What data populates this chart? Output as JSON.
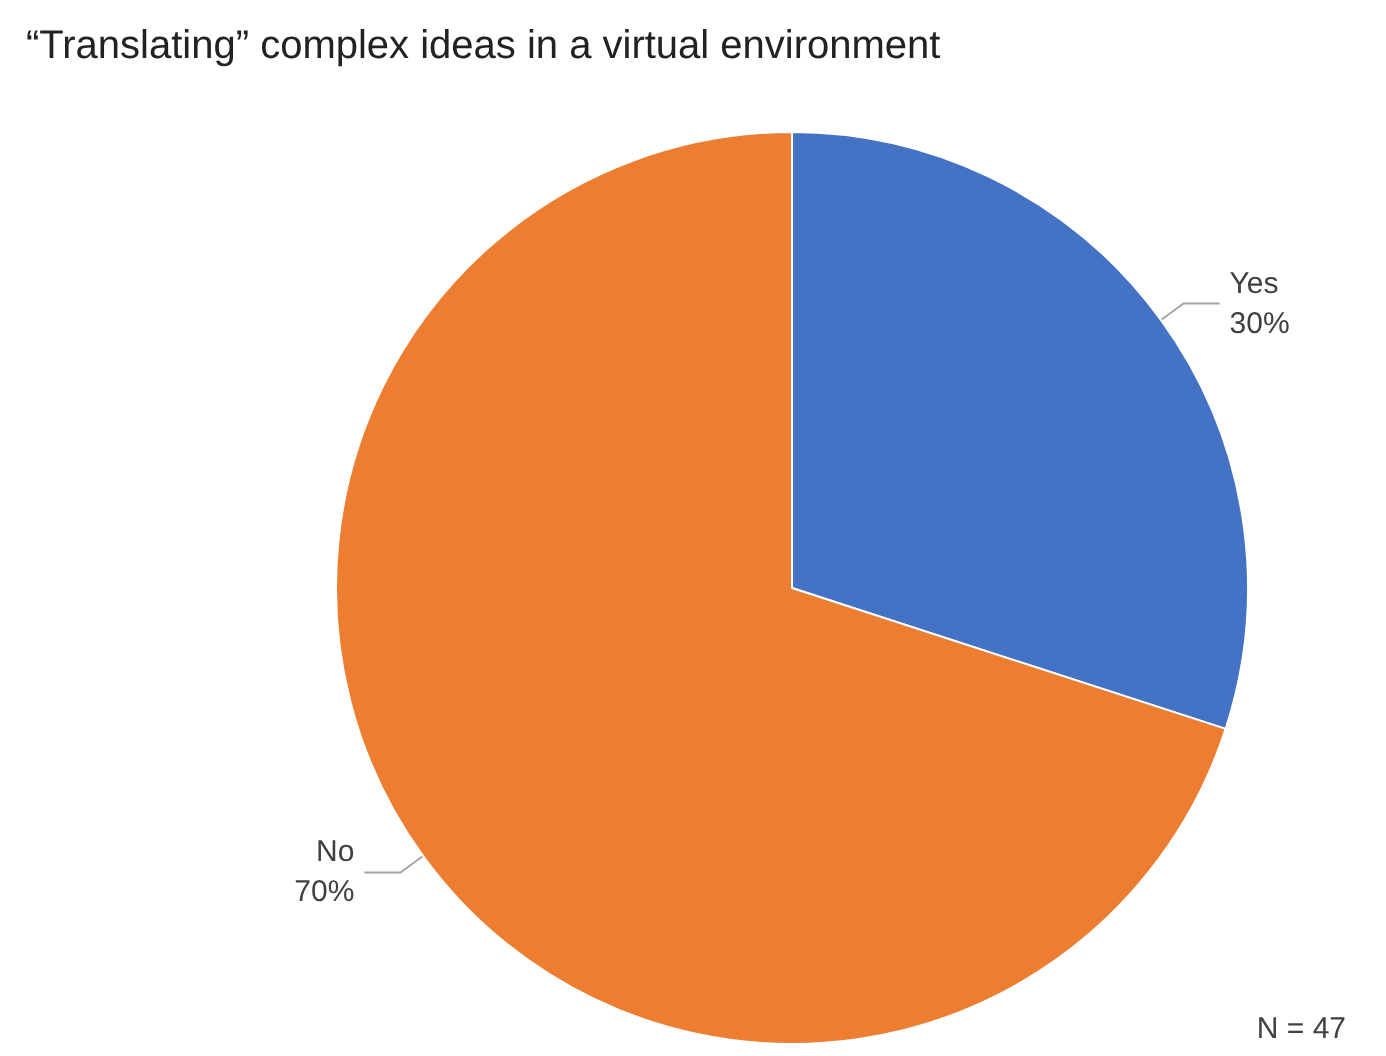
{
  "chart_data": {
    "type": "pie",
    "title": "“Translating” complex ideas in a virtual environment",
    "categories": [
      "Yes",
      "No"
    ],
    "values": [
      30,
      70
    ],
    "value_labels": [
      "30%",
      "70%"
    ],
    "colors": [
      "#4472c4",
      "#ed7d31"
    ],
    "annotations": [
      "N = 47"
    ],
    "legend": false
  }
}
